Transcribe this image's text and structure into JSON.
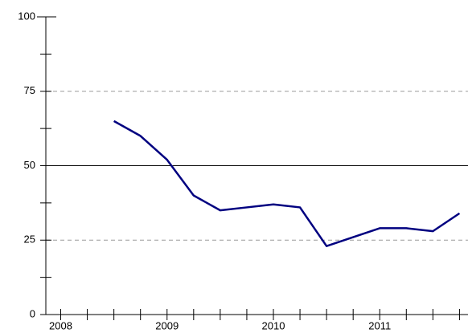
{
  "chart_data": {
    "type": "line",
    "x": [
      2008.5,
      2008.75,
      2009,
      2009.25,
      2009.5,
      2009.75,
      2010,
      2010.25,
      2010.5,
      2010.75,
      2011,
      2011.25,
      2011.5,
      2011.75
    ],
    "series": [
      {
        "color": "#000080",
        "values": [
          65,
          60,
          52,
          40,
          35,
          36,
          37,
          36,
          23,
          26,
          29,
          29,
          28,
          34
        ]
      }
    ],
    "xlim": [
      2007.86,
      2011.83
    ],
    "xticks": [
      2008,
      2009,
      2010,
      2011
    ],
    "ylim": [
      0,
      100
    ],
    "yticks": [
      0,
      25,
      50,
      75,
      100
    ],
    "grid": true,
    "reference_line": 50
  }
}
